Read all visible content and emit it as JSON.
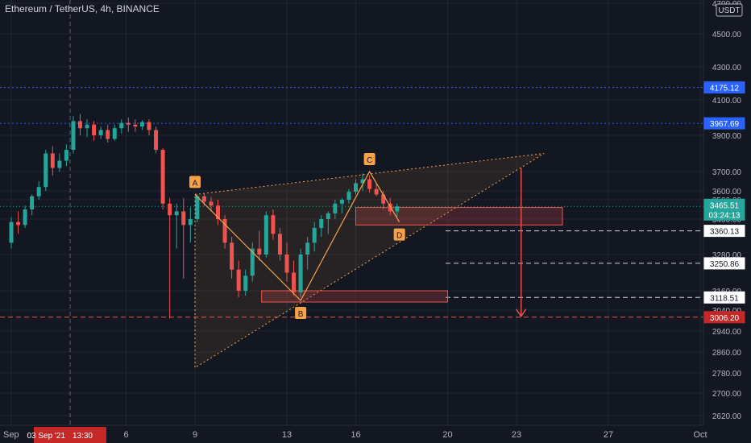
{
  "header": {
    "symbol": "Ethereum / TetherUS, 4h, BINANCE"
  },
  "colors": {
    "background": "#131722",
    "up": "#26a69a",
    "down": "#ef5350",
    "blue_line": "#2962ff",
    "pattern": "#f7a24a",
    "grid": "#1f2433"
  },
  "chart_data": {
    "type": "candlestick",
    "currency_badge": "USDT",
    "y_axis": {
      "ylim": [
        2580,
        4700
      ],
      "ticks": [
        "2620.00",
        "2700.00",
        "2780.00",
        "2860.00",
        "2940.00",
        "3040.00",
        "3160.00",
        "3280.00",
        "3400.00",
        "3500.00",
        "3600.00",
        "3700.00",
        "3900.00",
        "4100.00",
        "4300.00",
        "4500.00",
        "4700.00"
      ],
      "tick_values": [
        2620,
        2700,
        2780,
        2860,
        2940,
        3040,
        3160,
        3280,
        3400,
        3500,
        3600,
        3700,
        3900,
        4100,
        4300,
        4500,
        4700
      ]
    },
    "x_axis": {
      "labels": [
        "Sep",
        "6",
        "9",
        "13",
        "16",
        "20",
        "23",
        "27",
        "Oct"
      ],
      "label_days": [
        1,
        6,
        9,
        13,
        16,
        20,
        23,
        27,
        31
      ],
      "crosshair_label": "03 Sep '21",
      "crosshair_time": "13:30",
      "crosshair_day": 3.56
    },
    "series_candles": [
      [
        1.0,
        3320,
        3410,
        3300,
        3390
      ],
      [
        1.3,
        3390,
        3440,
        3350,
        3380
      ],
      [
        1.6,
        3380,
        3470,
        3370,
        3450
      ],
      [
        1.9,
        3450,
        3560,
        3420,
        3540
      ],
      [
        2.2,
        3540,
        3650,
        3500,
        3620
      ],
      [
        2.5,
        3620,
        3820,
        3600,
        3800
      ],
      [
        2.8,
        3800,
        3840,
        3680,
        3720
      ],
      [
        3.1,
        3720,
        3800,
        3700,
        3760
      ],
      [
        3.4,
        3760,
        3850,
        3730,
        3820
      ],
      [
        3.7,
        3820,
        4010,
        3800,
        3980
      ],
      [
        4.0,
        3980,
        4020,
        3900,
        3940
      ],
      [
        4.3,
        3940,
        3990,
        3890,
        3960
      ],
      [
        4.6,
        3960,
        3980,
        3870,
        3900
      ],
      [
        4.9,
        3900,
        3950,
        3880,
        3930
      ],
      [
        5.2,
        3930,
        3960,
        3860,
        3880
      ],
      [
        5.5,
        3880,
        3960,
        3870,
        3940
      ],
      [
        5.8,
        3940,
        3990,
        3910,
        3970
      ],
      [
        6.1,
        3970,
        4000,
        3920,
        3960
      ],
      [
        6.4,
        3960,
        3990,
        3920,
        3950
      ],
      [
        6.7,
        3950,
        3985,
        3930,
        3975
      ],
      [
        7.0,
        3975,
        3990,
        3900,
        3930
      ],
      [
        7.3,
        3930,
        3950,
        3800,
        3820
      ],
      [
        7.6,
        3820,
        3830,
        3450,
        3480
      ],
      [
        7.9,
        3480,
        3520,
        3000,
        3420
      ],
      [
        8.2,
        3420,
        3480,
        3300,
        3440
      ],
      [
        8.5,
        3440,
        3520,
        3200,
        3380
      ],
      [
        8.8,
        3380,
        3460,
        3320,
        3400
      ],
      [
        9.1,
        3400,
        3560,
        3390,
        3540
      ],
      [
        9.4,
        3540,
        3570,
        3470,
        3490
      ],
      [
        9.7,
        3490,
        3530,
        3440,
        3470
      ],
      [
        10.0,
        3470,
        3500,
        3380,
        3400
      ],
      [
        10.3,
        3400,
        3420,
        3300,
        3320
      ],
      [
        10.6,
        3320,
        3340,
        3200,
        3230
      ],
      [
        10.9,
        3230,
        3260,
        3120,
        3160
      ],
      [
        11.2,
        3160,
        3230,
        3130,
        3210
      ],
      [
        11.5,
        3210,
        3320,
        3190,
        3300
      ],
      [
        11.8,
        3300,
        3360,
        3260,
        3280
      ],
      [
        12.1,
        3280,
        3440,
        3270,
        3420
      ],
      [
        12.4,
        3420,
        3450,
        3330,
        3350
      ],
      [
        12.7,
        3350,
        3370,
        3260,
        3280
      ],
      [
        13.0,
        3280,
        3320,
        3190,
        3220
      ],
      [
        13.3,
        3220,
        3260,
        3130,
        3150
      ],
      [
        13.6,
        3150,
        3300,
        3120,
        3280
      ],
      [
        13.9,
        3280,
        3340,
        3230,
        3320
      ],
      [
        14.2,
        3320,
        3390,
        3290,
        3370
      ],
      [
        14.5,
        3370,
        3420,
        3340,
        3400
      ],
      [
        14.8,
        3400,
        3440,
        3350,
        3430
      ],
      [
        15.1,
        3430,
        3500,
        3400,
        3480
      ],
      [
        15.4,
        3480,
        3520,
        3430,
        3500
      ],
      [
        15.7,
        3500,
        3610,
        3480,
        3590
      ],
      [
        16.0,
        3590,
        3660,
        3560,
        3640
      ],
      [
        16.3,
        3640,
        3690,
        3600,
        3660
      ],
      [
        16.6,
        3660,
        3680,
        3580,
        3610
      ],
      [
        16.9,
        3610,
        3640,
        3540,
        3560
      ],
      [
        17.2,
        3560,
        3600,
        3450,
        3480
      ],
      [
        17.5,
        3480,
        3520,
        3420,
        3440
      ],
      [
        17.8,
        3440,
        3480,
        3410,
        3466
      ]
    ],
    "pattern_points": [
      {
        "label": "A",
        "x": 9.0,
        "y": 3560
      },
      {
        "label": "B",
        "x": 13.6,
        "y": 3100
      },
      {
        "label": "C",
        "x": 16.6,
        "y": 3700
      },
      {
        "label": "D",
        "x": 17.9,
        "y": 3390
      }
    ],
    "price_levels": [
      {
        "label": "4175.12",
        "value": 4175.12,
        "style": "blue-dotted"
      },
      {
        "label": "3967.69",
        "value": 3967.69,
        "style": "blue-dotted"
      },
      {
        "label": "3465.51",
        "value": 3465.51,
        "style": "current"
      },
      {
        "label": "3360.13",
        "value": 3360.13,
        "style": "white-dashed"
      },
      {
        "label": "3250.86",
        "value": 3250.86,
        "style": "white-dashed"
      },
      {
        "label": "3118.51",
        "value": 3118.51,
        "style": "white-dashed"
      },
      {
        "label": "3006.20",
        "value": 3006.2,
        "style": "red-dashed"
      }
    ],
    "countdown": "03:24:13",
    "wedge": {
      "upper": [
        [
          9.0,
          3560
        ],
        [
          24.2,
          3800
        ]
      ],
      "lower": [
        [
          9.0,
          2800
        ],
        [
          24.2,
          3800
        ]
      ]
    },
    "zones": [
      {
        "x0": 16.0,
        "x1": 25.0,
        "y0": 3380,
        "y1": 3460
      },
      {
        "x0": 11.9,
        "x1": 20.0,
        "y0": 3090,
        "y1": 3160
      }
    ],
    "target_arrow": {
      "x": 23.2,
      "y0": 3720,
      "y1": 3010
    }
  }
}
